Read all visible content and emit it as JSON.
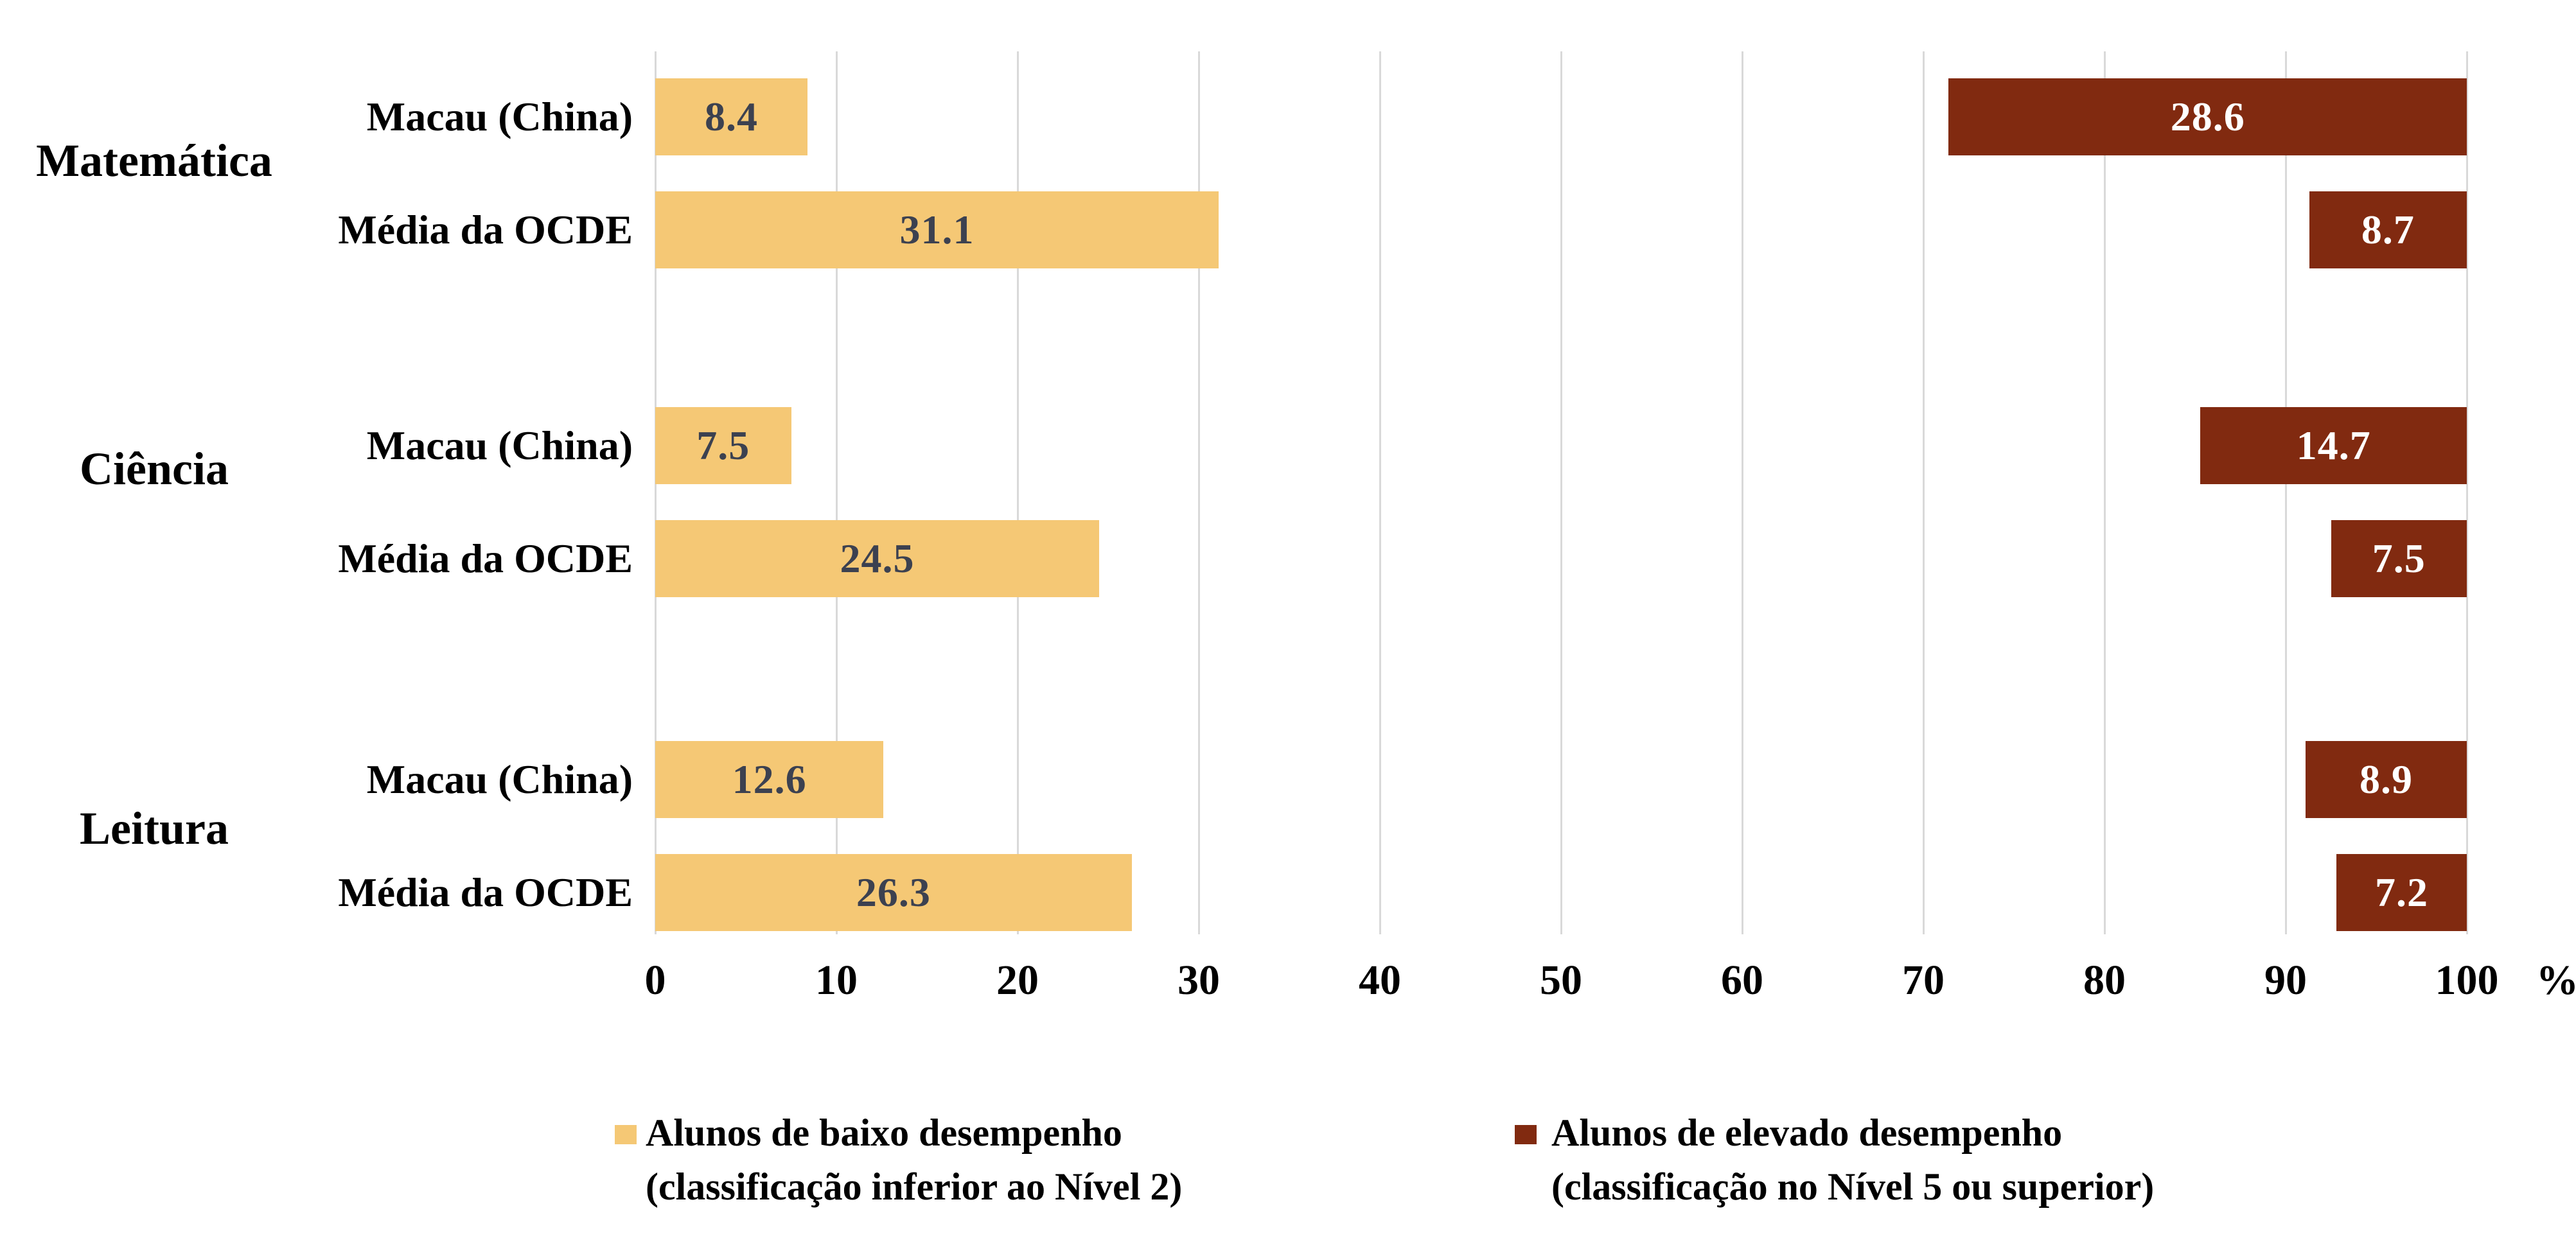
{
  "chart_data": {
    "type": "bar",
    "orientation": "horizontal",
    "title": "",
    "x_axis": {
      "min": 0,
      "max": 100,
      "ticks": [
        "0",
        "10",
        "20",
        "30",
        "40",
        "50",
        "60",
        "70",
        "80",
        "90",
        "100"
      ],
      "unit": "%",
      "grid": true
    },
    "groups": [
      {
        "label": "Matemática",
        "rows": [
          {
            "label": "Macau (China)",
            "low": 8.4,
            "high": 28.6
          },
          {
            "label": "Média da OCDE",
            "low": 31.1,
            "high": 8.7
          }
        ]
      },
      {
        "label": "Ciência",
        "rows": [
          {
            "label": "Macau (China)",
            "low": 7.5,
            "high": 14.7
          },
          {
            "label": "Média da OCDE",
            "low": 24.5,
            "high": 7.5
          }
        ]
      },
      {
        "label": "Leitura",
        "rows": [
          {
            "label": "Macau (China)",
            "low": 12.6,
            "high": 8.9
          },
          {
            "label": "Média da OCDE",
            "low": 26.3,
            "high": 7.2
          }
        ]
      }
    ],
    "series": [
      {
        "name": "Alunos de baixo desempenho (classificação inferior ao Nível 2)",
        "color": "#f5c875",
        "anchor": "left"
      },
      {
        "name": "Alunos de elevado desempenho (classificação no Nível 5 ou superior)",
        "color": "#812a10",
        "anchor": "right"
      }
    ],
    "legend": [
      {
        "line1": "Alunos de baixo desempenho",
        "line2": "(classificação inferior ao Nível 2)",
        "color": "#f5c875"
      },
      {
        "line1": "Alunos de elevado desempenho",
        "line2": "(classificação no Nível 5 ou superior)",
        "color": "#812a10"
      }
    ],
    "colors": {
      "low_bar": "#f5c875",
      "high_bar": "#812a10",
      "low_bar_value_text": "#3c4150",
      "high_bar_value_text": "#ffffff",
      "gridline": "#d9d9d9",
      "text": "#000000",
      "background": "#ffffff"
    },
    "legend_position": "bottom"
  }
}
